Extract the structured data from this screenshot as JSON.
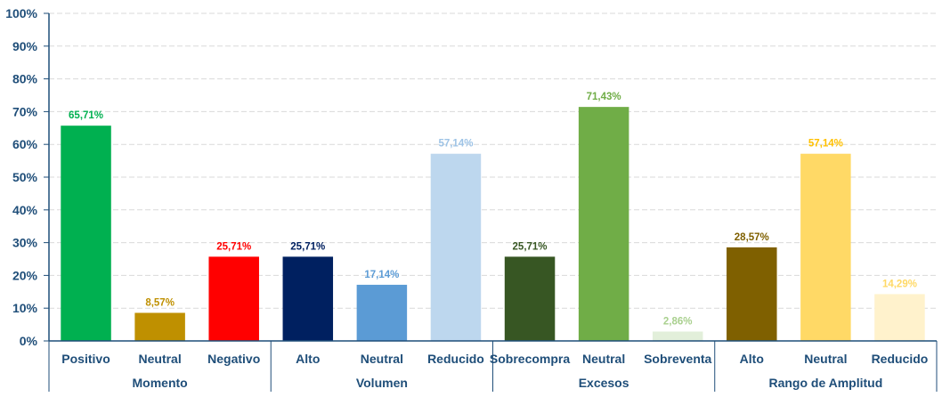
{
  "chart_data": {
    "type": "bar",
    "ylim": [
      0,
      100
    ],
    "ytick_labels": [
      "0%",
      "10%",
      "20%",
      "30%",
      "40%",
      "50%",
      "60%",
      "70%",
      "80%",
      "90%",
      "100%"
    ],
    "grid": true,
    "legend": "none",
    "groups": [
      {
        "name": "Momento",
        "bars": [
          {
            "category": "Positivo",
            "value": 65.71,
            "label": "65,71%",
            "color": "#00b050",
            "label_color": "#00b050"
          },
          {
            "category": "Neutral",
            "value": 8.57,
            "label": "8,57%",
            "color": "#bf9000",
            "label_color": "#bf9000"
          },
          {
            "category": "Negativo",
            "value": 25.71,
            "label": "25,71%",
            "color": "#ff0000",
            "label_color": "#ff0000"
          }
        ]
      },
      {
        "name": "Volumen",
        "bars": [
          {
            "category": "Alto",
            "value": 25.71,
            "label": "25,71%",
            "color": "#002060",
            "label_color": "#002060"
          },
          {
            "category": "Neutral",
            "value": 17.14,
            "label": "17,14%",
            "color": "#5b9bd5",
            "label_color": "#5b9bd5"
          },
          {
            "category": "Reducido",
            "value": 57.14,
            "label": "57,14%",
            "color": "#bdd7ee",
            "label_color": "#9dc3e6"
          }
        ]
      },
      {
        "name": "Excesos",
        "bars": [
          {
            "category": "Sobrecompra",
            "value": 25.71,
            "label": "25,71%",
            "color": "#375623",
            "label_color": "#375623"
          },
          {
            "category": "Neutral",
            "value": 71.43,
            "label": "71,43%",
            "color": "#70ad47",
            "label_color": "#70ad47"
          },
          {
            "category": "Sobreventa",
            "value": 2.86,
            "label": "2,86%",
            "color": "#e2efda",
            "label_color": "#a9d08e"
          }
        ]
      },
      {
        "name": "Rango de Amplitud",
        "bars": [
          {
            "category": "Alto",
            "value": 28.57,
            "label": "28,57%",
            "color": "#7f6000",
            "label_color": "#7f6000"
          },
          {
            "category": "Neutral",
            "value": 57.14,
            "label": "57,14%",
            "color": "#ffd966",
            "label_color": "#ffc000"
          },
          {
            "category": "Reducido",
            "value": 14.29,
            "label": "14,29%",
            "color": "#fff2cc",
            "label_color": "#ffd966"
          }
        ]
      }
    ]
  },
  "colors": {
    "axis": "#1f4e79",
    "grid": "#d9d9d9"
  }
}
